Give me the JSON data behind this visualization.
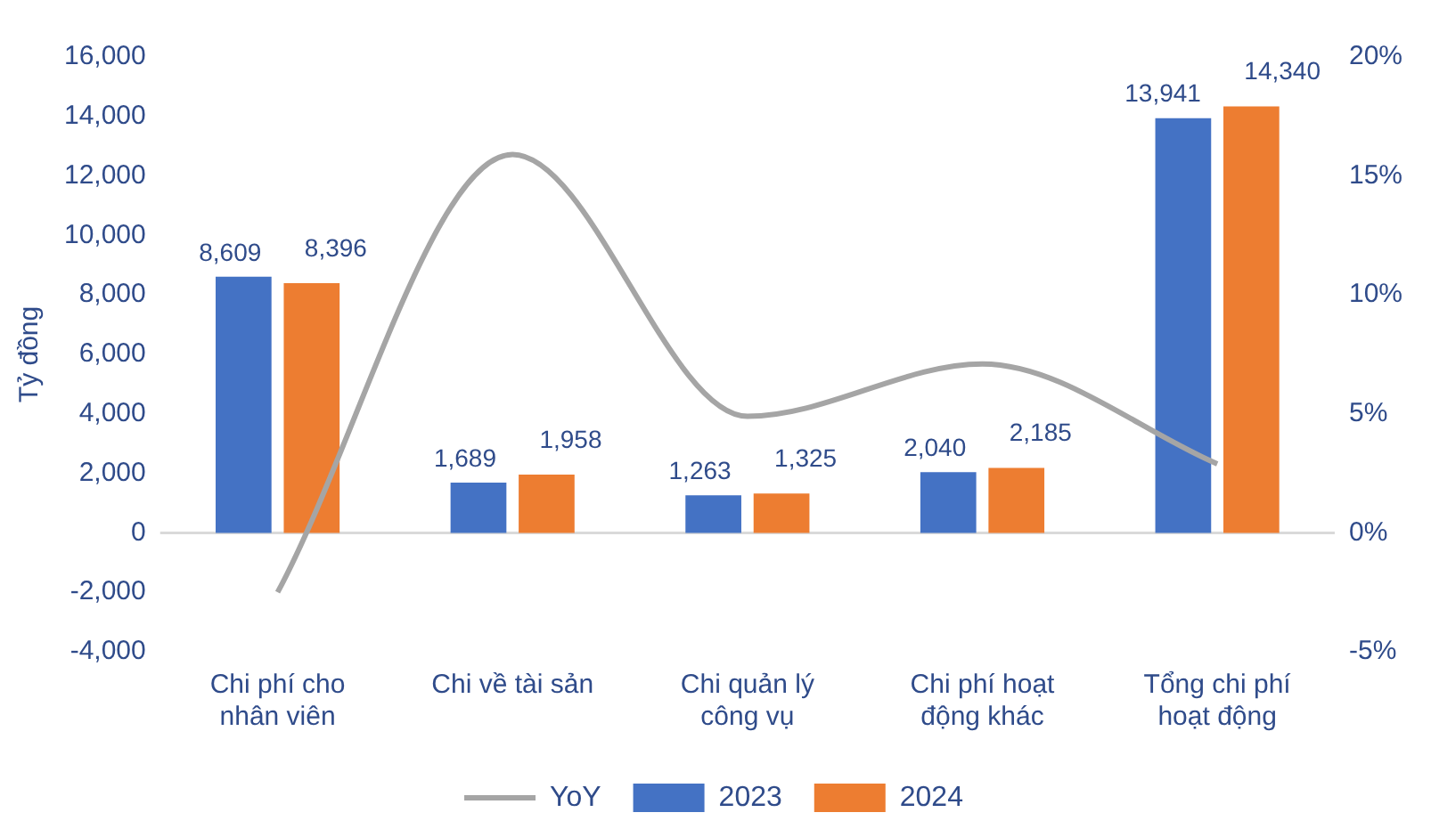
{
  "chart_data": {
    "type": "bar",
    "ylabel": "Tỷ đồng",
    "categories": [
      "Chi phí cho nhân viên",
      "Chi về tài sản",
      "Chi quản lý công vụ",
      "Chi phí hoạt động khác",
      "Tổng chi phí hoạt động"
    ],
    "series": [
      {
        "name": "2023",
        "color": "#4472c4",
        "values": [
          8609,
          1689,
          1263,
          2040,
          13941
        ],
        "value_labels": [
          "8,609",
          "1,689",
          "1,263",
          "2,040",
          "13,941"
        ]
      },
      {
        "name": "2024",
        "color": "#ed7d31",
        "values": [
          8396,
          1958,
          1325,
          2185,
          14340
        ],
        "value_labels": [
          "8,396",
          "1,958",
          "1,325",
          "2,185",
          "14,340"
        ]
      },
      {
        "name": "YoY",
        "type": "line",
        "axis": "y2",
        "color": "#a5a5a5",
        "values": [
          -2.5,
          15.9,
          4.9,
          7.1,
          2.9
        ]
      }
    ],
    "ylim": [
      -4000,
      16000
    ],
    "yticks": [
      {
        "value": -4000,
        "label": "-4,000"
      },
      {
        "value": -2000,
        "label": "-2,000"
      },
      0,
      {
        "value": 2000,
        "label": "2,000"
      },
      {
        "value": 4000,
        "label": "4,000"
      },
      {
        "value": 6000,
        "label": "6,000"
      },
      {
        "value": 8000,
        "label": "8,000"
      },
      {
        "value": 10000,
        "label": "10,000"
      },
      {
        "value": 12000,
        "label": "12,000"
      },
      {
        "value": 14000,
        "label": "14,000"
      },
      {
        "value": 16000,
        "label": "16,000"
      }
    ],
    "y2lim": [
      -5,
      20
    ],
    "y2ticks": [
      {
        "value": -5,
        "label": "-5%"
      },
      {
        "value": 0,
        "label": "0%"
      },
      {
        "value": 5,
        "label": "5%"
      },
      {
        "value": 10,
        "label": "10%"
      },
      {
        "value": 15,
        "label": "15%"
      },
      {
        "value": 20,
        "label": "20%"
      }
    ],
    "ref_lines": [
      {
        "axis": "y",
        "value": 0,
        "color": "#d9d9d9"
      }
    ],
    "grid": false,
    "legend": "bottom",
    "marker": "none",
    "line_style": "solid"
  }
}
